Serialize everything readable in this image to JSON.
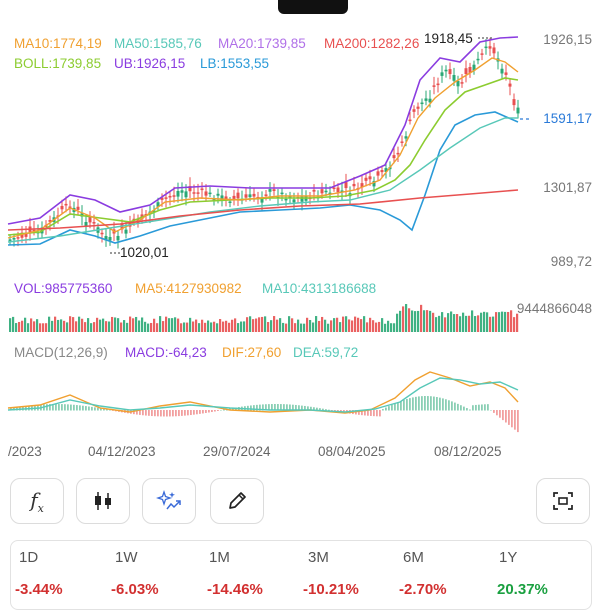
{
  "indicators": {
    "ma10": "MA10:1774,19",
    "ma50": "MA50:1585,76",
    "ma20": "MA20:1739,85",
    "ma200": "MA200:1282,26",
    "boll": "BOLL:1739,85",
    "ub": "UB:1926,15",
    "lb": "LB:1553,55"
  },
  "price_axis": {
    "top": "1926,15",
    "mid": "1301,87",
    "bottom": "989,72",
    "current": "1591,17"
  },
  "annotations": {
    "high": "1918,45",
    "low": "1020,01"
  },
  "volume": {
    "vol": "VOL:985775360",
    "ma5": "MA5:4127930982",
    "ma10": "MA10:4313186688",
    "max": "9444866048"
  },
  "macd": {
    "label": "MACD(12,26,9)",
    "macd": "MACD:-64,23",
    "dif": "DIF:27,60",
    "dea": "DEA:59,72"
  },
  "dates": [
    "/2023",
    "04/12/2023",
    "29/07/2024",
    "08/04/2025",
    "08/12/2025"
  ],
  "toolbar": {
    "icons": [
      "function-icon",
      "candlestick-icon",
      "sparkle-icon",
      "pencil-icon",
      "screenshot-icon"
    ]
  },
  "performance": [
    {
      "period": "1D",
      "value": "-3.44%"
    },
    {
      "period": "1W",
      "value": "-6.03%"
    },
    {
      "period": "1M",
      "value": "-14.46%"
    },
    {
      "period": "3M",
      "value": "-10.21%"
    },
    {
      "period": "6M",
      "value": "-2.70%"
    },
    {
      "period": "1Y",
      "value": "20.37%"
    }
  ],
  "colors": {
    "ma10": "#f0a030",
    "ma50": "#58c8b8",
    "ma20": "#b070e8",
    "ma200": "#e85050",
    "boll": "#8ccc30",
    "ub": "#8a3ce0",
    "lb": "#2a9ad8",
    "up": "#2aa876",
    "down": "#e85050",
    "negative": "#d23030",
    "positive": "#1aa040"
  }
}
